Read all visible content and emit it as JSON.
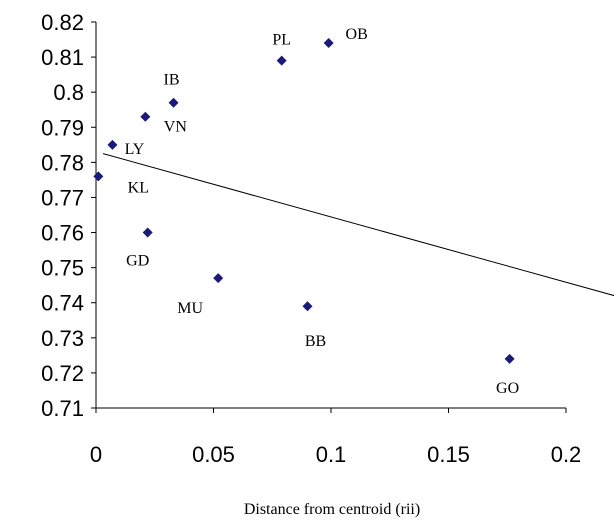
{
  "chart_data": {
    "type": "scatter",
    "title": "",
    "xlabel": "Distance from centroid (rii)",
    "ylabel": "",
    "xlim": [
      0,
      0.2
    ],
    "ylim": [
      0.71,
      0.82
    ],
    "x_ticks": [
      "0",
      "0.05",
      "0.1",
      "0.15",
      "0.2"
    ],
    "y_ticks": [
      "0.82",
      "0.81",
      "0.8",
      "0.79",
      "0.78",
      "0.77",
      "0.76",
      "0.75",
      "0.74",
      "0.73",
      "0.72",
      "0.71"
    ],
    "points": [
      {
        "label": "PL",
        "x": 0.079,
        "y": 0.809
      },
      {
        "label": "OB",
        "x": 0.099,
        "y": 0.814
      },
      {
        "label": "IB",
        "x": 0.033,
        "y": 0.797
      },
      {
        "label": "VN",
        "x": 0.021,
        "y": 0.793
      },
      {
        "label": "LY",
        "x": 0.007,
        "y": 0.785
      },
      {
        "label": "KL",
        "x": 0.001,
        "y": 0.776
      },
      {
        "label": "GD",
        "x": 0.022,
        "y": 0.76
      },
      {
        "label": "MU",
        "x": 0.052,
        "y": 0.747
      },
      {
        "label": "BB",
        "x": 0.09,
        "y": 0.739
      },
      {
        "label": "GO",
        "x": 0.176,
        "y": 0.724
      }
    ],
    "trendline": {
      "type": "linear",
      "x": [
        0.003,
        0.226
      ],
      "y": [
        0.7825,
        0.741
      ]
    },
    "marker_color": "#1a1a7a",
    "line_color": "#000000",
    "grid": false,
    "legend": "none"
  }
}
